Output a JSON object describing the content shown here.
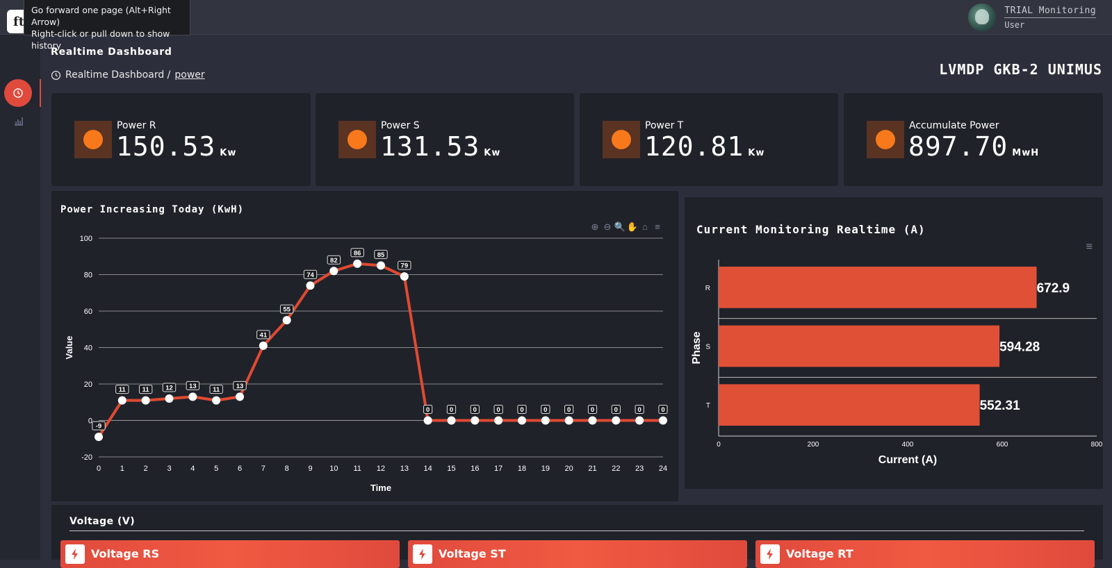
{
  "tooltip": {
    "line1": "Go forward one page (Alt+Right Arrow)",
    "line2": "Right-click or pull down to show history"
  },
  "user": {
    "name": "TRIAL Monitoring",
    "role": "User"
  },
  "page": {
    "title": "Realtime Dashboard",
    "breadcrumb": {
      "parent": "Realtime Dashboard /",
      "current": "power"
    },
    "station": "LVMDP GKB-2 UNIMUS"
  },
  "cards": [
    {
      "label": "Power R",
      "value": "150.53",
      "unit": "Kw"
    },
    {
      "label": "Power S",
      "value": "131.53",
      "unit": "Kw"
    },
    {
      "label": "Power T",
      "value": "120.81",
      "unit": "Kw"
    },
    {
      "label": "Accumulate Power",
      "value": "897.70",
      "unit": "MwH"
    }
  ],
  "colors": {
    "accent": "#e04a3c",
    "card_icon": "#f7791c",
    "bar": "#e05037",
    "line": "#e04a32"
  },
  "line_panel": {
    "title": "Power Increasing Today (KwH)"
  },
  "bar_panel": {
    "title": "Current Monitoring Realtime (A)"
  },
  "voltage": {
    "title": "Voltage (V)",
    "cards": [
      "Voltage RS",
      "Voltage ST",
      "Voltage RT"
    ]
  },
  "chart_data": [
    {
      "type": "line",
      "title": "Power Increasing Today (KwH)",
      "xlabel": "Time",
      "ylabel": "Value",
      "x": [
        0,
        1,
        2,
        3,
        4,
        5,
        6,
        7,
        8,
        9,
        10,
        11,
        12,
        13,
        14,
        15,
        16,
        17,
        18,
        19,
        20,
        21,
        22,
        23,
        24
      ],
      "values": [
        -9,
        11,
        11,
        12,
        13,
        11,
        13,
        41,
        55,
        74,
        82,
        86,
        85,
        79,
        0,
        0,
        0,
        0,
        0,
        0,
        0,
        0,
        0,
        0,
        0
      ],
      "xlim": [
        0,
        24
      ],
      "ylim": [
        -20,
        100
      ],
      "yticks": [
        -20,
        0,
        20,
        40,
        60,
        80,
        100
      ],
      "grid": true,
      "data_labels": true
    },
    {
      "type": "bar",
      "orientation": "horizontal",
      "title": "Current Monitoring Realtime (A)",
      "xlabel": "Current (A)",
      "ylabel": "Phase",
      "categories": [
        "R",
        "S",
        "T"
      ],
      "values": [
        672.9,
        594.28,
        552.31
      ],
      "xlim": [
        0,
        800
      ],
      "xticks": [
        0,
        200,
        400,
        600,
        800
      ],
      "data_labels": true
    }
  ]
}
